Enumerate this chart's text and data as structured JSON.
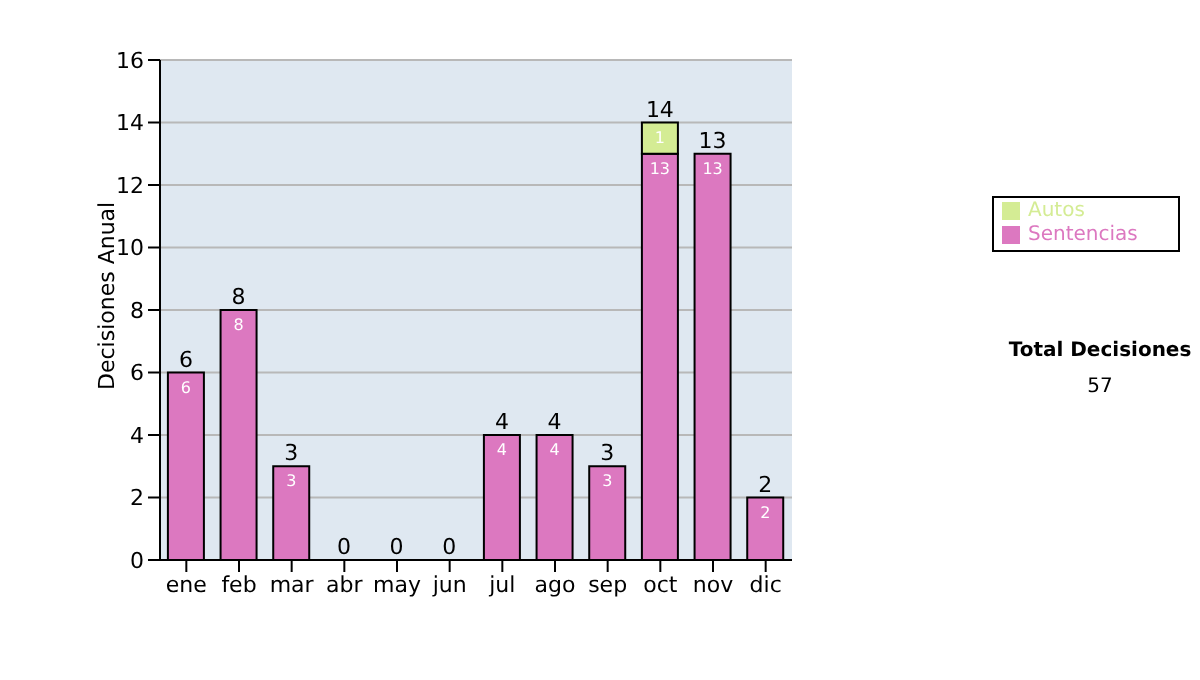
{
  "chart_data": {
    "type": "bar",
    "stacked": true,
    "ylabel": "Decisiones Anual",
    "categories": [
      "ene",
      "feb",
      "mar",
      "abr",
      "may",
      "jun",
      "jul",
      "ago",
      "sep",
      "oct",
      "nov",
      "dic"
    ],
    "series": [
      {
        "name": "Sentencias",
        "color": "#dc78c0",
        "values": [
          6,
          8,
          3,
          0,
          0,
          0,
          4,
          4,
          3,
          13,
          13,
          2
        ],
        "value_labels": [
          "6",
          "8",
          "3",
          null,
          null,
          null,
          "4",
          "4",
          "3",
          "13",
          "13",
          "2"
        ]
      },
      {
        "name": "Autos",
        "color": "#d4ec94",
        "values": [
          0,
          0,
          0,
          0,
          0,
          0,
          0,
          0,
          0,
          1,
          0,
          0
        ],
        "value_labels": [
          null,
          null,
          null,
          null,
          null,
          null,
          null,
          null,
          null,
          "1",
          null,
          null
        ]
      }
    ],
    "totals": [
      "6",
      "8",
      "3",
      "0",
      "0",
      "0",
      "4",
      "4",
      "3",
      "14",
      "13",
      "2"
    ],
    "ylim": [
      0,
      16
    ],
    "yticks": [
      0,
      2,
      4,
      6,
      8,
      10,
      12,
      14,
      16
    ],
    "grid": "y",
    "legend": "right",
    "annotations": [
      "Total Decisiones",
      "57"
    ]
  }
}
